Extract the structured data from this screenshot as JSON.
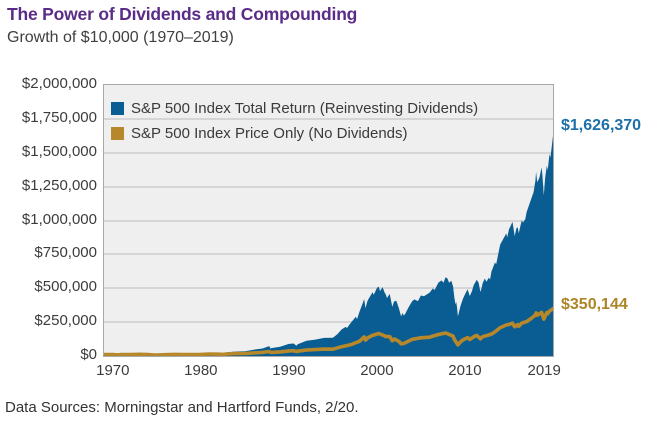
{
  "page": {
    "footnote": "Data Sources: Morningstar and Hartford Funds, 2/20."
  },
  "colors": {
    "title_purple": "#5b2c87",
    "plot_background": "#efefef",
    "gridline": "#d5d5d7",
    "total_return_fill": "#0a5d92",
    "price_only_line": "#b6882b",
    "total_return_label_text": "#1d6fa9",
    "price_only_label_text": "#ad8526"
  },
  "chart_data": {
    "type": "area",
    "title": "The Power of Dividends and Compounding",
    "subtitle": "Growth of $10,000 (1970–2019)",
    "x_domain": [
      1969,
      2020
    ],
    "y_domain": [
      0,
      2000000
    ],
    "grid": "horizontal",
    "legend_position": "top-left-inside",
    "y_tick_labels": [
      "$2,000,000",
      "$1,750,000",
      "$1,500,000",
      "$1,250,000",
      "$1,000,000",
      "$750,000",
      "$500,000",
      "$250,000",
      "$0"
    ],
    "x_ticks": [
      1970,
      1980,
      1990,
      2000,
      2010,
      2019
    ],
    "series": [
      {
        "name": "S&P 500 Index Total Return (Reinvesting Dividends)",
        "type": "area",
        "color": "#0a5d92",
        "end_value": 1626370,
        "end_label": "$1,626,370",
        "points": [
          [
            1969,
            10000
          ],
          [
            1970,
            10000
          ],
          [
            1970.5,
            8800
          ],
          [
            1971,
            10400
          ],
          [
            1972,
            11900
          ],
          [
            1973,
            14100
          ],
          [
            1974,
            12000
          ],
          [
            1974.75,
            8300
          ],
          [
            1975,
            8900
          ],
          [
            1976,
            12200
          ],
          [
            1977,
            15100
          ],
          [
            1978,
            14000
          ],
          [
            1979,
            14900
          ],
          [
            1980,
            17700
          ],
          [
            1981,
            23400
          ],
          [
            1982,
            22300
          ],
          [
            1982.6,
            19800
          ],
          [
            1983,
            27100
          ],
          [
            1984,
            33200
          ],
          [
            1985,
            35300
          ],
          [
            1986,
            46500
          ],
          [
            1987,
            55200
          ],
          [
            1987.75,
            73000
          ],
          [
            1987.95,
            53000
          ],
          [
            1988,
            58100
          ],
          [
            1989,
            67700
          ],
          [
            1990,
            89100
          ],
          [
            1990.55,
            92000
          ],
          [
            1990.85,
            76000
          ],
          [
            1991,
            86300
          ],
          [
            1992,
            112600
          ],
          [
            1993,
            121200
          ],
          [
            1994,
            133400
          ],
          [
            1995,
            135200
          ],
          [
            1995.5,
            160000
          ],
          [
            1996,
            196600
          ],
          [
            1996.45,
            215000
          ],
          [
            1996.6,
            207000
          ],
          [
            1997,
            241800
          ],
          [
            1997.6,
            290000
          ],
          [
            1997.75,
            272000
          ],
          [
            1998,
            322400
          ],
          [
            1998.55,
            420000
          ],
          [
            1998.7,
            352000
          ],
          [
            1998.9,
            400000
          ],
          [
            1999,
            414600
          ],
          [
            1999.5,
            470000
          ],
          [
            1999.65,
            452000
          ],
          [
            2000,
            501800
          ],
          [
            2000.2,
            512000
          ],
          [
            2000.35,
            480000
          ],
          [
            2000.65,
            508000
          ],
          [
            2000.9,
            465000
          ],
          [
            2001,
            456100
          ],
          [
            2001.15,
            428000
          ],
          [
            2001.45,
            458000
          ],
          [
            2001.75,
            362000
          ],
          [
            2001.95,
            405000
          ],
          [
            2002,
            401900
          ],
          [
            2002.2,
            408000
          ],
          [
            2002.5,
            352000
          ],
          [
            2002.75,
            292000
          ],
          [
            2002.9,
            318000
          ],
          [
            2003.05,
            298000
          ],
          [
            2003.2,
            310000
          ],
          [
            2003.6,
            360000
          ],
          [
            2004,
            402900
          ],
          [
            2004.25,
            418000
          ],
          [
            2004.65,
            405000
          ],
          [
            2005,
            446700
          ],
          [
            2005.35,
            441000
          ],
          [
            2006,
            468600
          ],
          [
            2006.35,
            498000
          ],
          [
            2006.55,
            487000
          ],
          [
            2007,
            542600
          ],
          [
            2007.35,
            558000
          ],
          [
            2007.55,
            540000
          ],
          [
            2007.8,
            581000
          ],
          [
            2008,
            572400
          ],
          [
            2008.2,
            541000
          ],
          [
            2008.45,
            556000
          ],
          [
            2008.65,
            512000
          ],
          [
            2008.8,
            430000
          ],
          [
            2008.92,
            380000
          ],
          [
            2009,
            400000
          ],
          [
            2009.1,
            360000
          ],
          [
            2009.2,
            292000
          ],
          [
            2009.5,
            372000
          ],
          [
            2009.75,
            420000
          ],
          [
            2010,
            456000
          ],
          [
            2010.3,
            492000
          ],
          [
            2010.55,
            442000
          ],
          [
            2010.8,
            480000
          ],
          [
            2011,
            524700
          ],
          [
            2011.35,
            562000
          ],
          [
            2011.55,
            540000
          ],
          [
            2011.75,
            472000
          ],
          [
            2011.9,
            505000
          ],
          [
            2012,
            535800
          ],
          [
            2012.25,
            572000
          ],
          [
            2012.45,
            548000
          ],
          [
            2012.7,
            578000
          ],
          [
            2012.85,
            565000
          ],
          [
            2013,
            621500
          ],
          [
            2013.4,
            690000
          ],
          [
            2013.55,
            678000
          ],
          [
            2014,
            822800
          ],
          [
            2014.3,
            858000
          ],
          [
            2014.7,
            905000
          ],
          [
            2014.8,
            875000
          ],
          [
            2015,
            935400
          ],
          [
            2015.4,
            990000
          ],
          [
            2015.65,
            885000
          ],
          [
            2015.85,
            945000
          ],
          [
            2016,
            948300
          ],
          [
            2016.1,
            905000
          ],
          [
            2016.45,
            1000000
          ],
          [
            2016.6,
            985000
          ],
          [
            2016.85,
            1010000
          ],
          [
            2017,
            1061700
          ],
          [
            2017.5,
            1155000
          ],
          [
            2017.8,
            1210000
          ],
          [
            2018,
            1293500
          ],
          [
            2018.08,
            1360000
          ],
          [
            2018.2,
            1282000
          ],
          [
            2018.45,
            1315000
          ],
          [
            2018.7,
            1392000
          ],
          [
            2018.8,
            1335000
          ],
          [
            2018.95,
            1185000
          ],
          [
            2019.1,
            1310000
          ],
          [
            2019.3,
            1405000
          ],
          [
            2019.4,
            1372000
          ],
          [
            2019.6,
            1490000
          ],
          [
            2019.7,
            1465000
          ],
          [
            2019.85,
            1540000
          ],
          [
            2020,
            1626370
          ]
        ]
      },
      {
        "name": "S&P 500 Index Price Only (No Dividends)",
        "type": "line",
        "color": "#b6882b",
        "end_value": 350144,
        "end_label": "$350,144",
        "points": [
          [
            1969,
            10000
          ],
          [
            1970,
            10000
          ],
          [
            1970.5,
            8400
          ],
          [
            1971,
            10000
          ],
          [
            1972,
            11100
          ],
          [
            1973,
            12800
          ],
          [
            1974,
            10700
          ],
          [
            1974.75,
            7300
          ],
          [
            1975,
            7500
          ],
          [
            1976,
            9800
          ],
          [
            1977,
            11700
          ],
          [
            1978,
            10400
          ],
          [
            1979,
            10500
          ],
          [
            1980,
            11800
          ],
          [
            1981,
            14800
          ],
          [
            1982,
            13300
          ],
          [
            1982.6,
            11900
          ],
          [
            1983,
            15300
          ],
          [
            1984,
            18000
          ],
          [
            1985,
            18300
          ],
          [
            1986,
            23100
          ],
          [
            1987,
            26500
          ],
          [
            1987.75,
            33500
          ],
          [
            1987.95,
            25500
          ],
          [
            1988,
            26900
          ],
          [
            1989,
            30200
          ],
          [
            1990,
            37900
          ],
          [
            1990.55,
            39200
          ],
          [
            1990.85,
            32500
          ],
          [
            1991,
            35400
          ],
          [
            1992,
            44200
          ],
          [
            1993,
            47600
          ],
          [
            1994,
            51000
          ],
          [
            1995,
            50300
          ],
          [
            1996,
            68800
          ],
          [
            1997,
            82300
          ],
          [
            1997.6,
            98000
          ],
          [
            1998,
            107600
          ],
          [
            1998.55,
            140000
          ],
          [
            1998.7,
            117000
          ],
          [
            1999,
            135800
          ],
          [
            1999.5,
            152000
          ],
          [
            2000,
            161800
          ],
          [
            2000.2,
            166000
          ],
          [
            2000.9,
            148000
          ],
          [
            2001,
            143500
          ],
          [
            2001.45,
            144000
          ],
          [
            2001.75,
            113000
          ],
          [
            2002,
            125300
          ],
          [
            2002.5,
            108000
          ],
          [
            2002.75,
            90000
          ],
          [
            2003.05,
            92000
          ],
          [
            2003.6,
            110000
          ],
          [
            2004,
            122800
          ],
          [
            2005,
            134600
          ],
          [
            2006,
            138700
          ],
          [
            2006.35,
            147000
          ],
          [
            2007,
            158900
          ],
          [
            2007.8,
            170000
          ],
          [
            2008,
            164600
          ],
          [
            2008.65,
            146000
          ],
          [
            2008.8,
            122000
          ],
          [
            2009.2,
            82000
          ],
          [
            2009.5,
            105000
          ],
          [
            2009.75,
            118000
          ],
          [
            2010,
            126100
          ],
          [
            2010.3,
            136000
          ],
          [
            2010.55,
            122000
          ],
          [
            2011,
            142200
          ],
          [
            2011.35,
            152000
          ],
          [
            2011.75,
            127000
          ],
          [
            2012,
            142200
          ],
          [
            2012.7,
            155000
          ],
          [
            2013,
            161300
          ],
          [
            2013.4,
            178000
          ],
          [
            2014,
            209300
          ],
          [
            2014.7,
            229000
          ],
          [
            2015,
            233200
          ],
          [
            2015.4,
            242000
          ],
          [
            2015.65,
            216000
          ],
          [
            2016,
            231500
          ],
          [
            2016.1,
            220000
          ],
          [
            2016.45,
            242000
          ],
          [
            2017,
            253700
          ],
          [
            2017.5,
            276000
          ],
          [
            2018,
            302600
          ],
          [
            2018.08,
            318000
          ],
          [
            2018.2,
            300000
          ],
          [
            2018.7,
            322000
          ],
          [
            2018.95,
            272000
          ],
          [
            2019.3,
            320000
          ],
          [
            2019.4,
            312000
          ],
          [
            2019.6,
            332000
          ],
          [
            2019.85,
            342000
          ],
          [
            2020,
            350144
          ]
        ]
      }
    ]
  }
}
